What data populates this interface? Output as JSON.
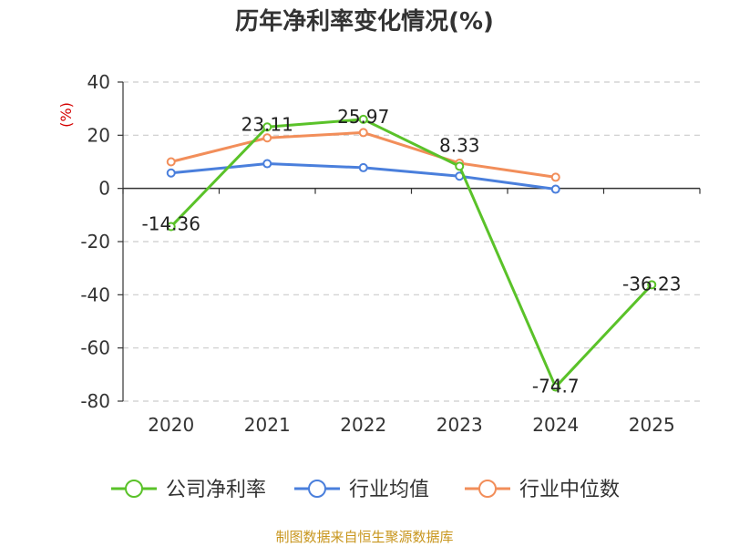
{
  "chart_data": {
    "type": "line",
    "title": "历年净利率变化情况(%)",
    "ylabel": "(%)",
    "xlabel": "",
    "categories": [
      "2020",
      "2021",
      "2022",
      "2023",
      "2024",
      "2025"
    ],
    "ylim": [
      -80,
      40
    ],
    "yticks": [
      40,
      20,
      0,
      -20,
      -40,
      -60,
      -80
    ],
    "grid": true,
    "legend_position": "bottom",
    "series": [
      {
        "name": "公司净利率",
        "color": "#5ac229",
        "values": [
          -14.36,
          23.11,
          25.97,
          8.33,
          -74.7,
          -36.23
        ],
        "labels": [
          "-14.36",
          "23.11",
          "25.97",
          "8.33",
          "-74.7",
          "-36.23"
        ]
      },
      {
        "name": "行业均值",
        "color": "#4a7fdc",
        "values": [
          5.8,
          9.3,
          7.8,
          4.6,
          -0.3,
          null
        ]
      },
      {
        "name": "行业中位数",
        "color": "#f28e5a",
        "values": [
          10,
          19,
          21,
          9.5,
          4.2,
          null
        ]
      }
    ]
  },
  "source_text": "制图数据来自恒生聚源数据库"
}
